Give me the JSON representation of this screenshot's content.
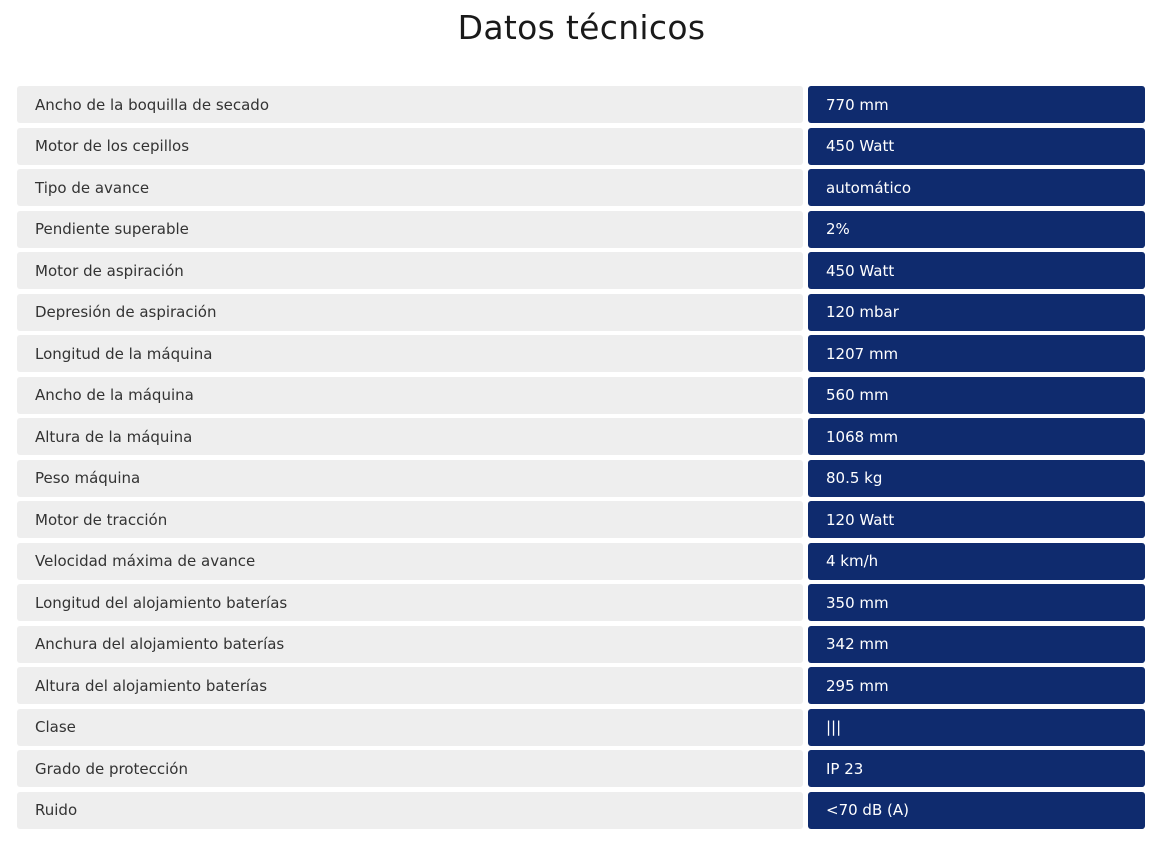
{
  "title": "Datos técnicos",
  "colors": {
    "label_bg": "#eeeeee",
    "value_bg": "#0f2b6e",
    "value_text": "#ffffff",
    "label_text": "#333333"
  },
  "specs": [
    {
      "label": "Ancho de la boquilla de secado",
      "value": "770 mm"
    },
    {
      "label": "Motor de los cepillos",
      "value": "450 Watt"
    },
    {
      "label": "Tipo de avance",
      "value": "automático"
    },
    {
      "label": "Pendiente superable",
      "value": "2%"
    },
    {
      "label": "Motor de aspiración",
      "value": "450 Watt"
    },
    {
      "label": "Depresión de aspiración",
      "value": "120 mbar"
    },
    {
      "label": "Longitud de la máquina",
      "value": "1207 mm"
    },
    {
      "label": "Ancho de la máquina",
      "value": "560 mm"
    },
    {
      "label": "Altura de la máquina",
      "value": "1068 mm"
    },
    {
      "label": "Peso máquina",
      "value": "80.5 kg"
    },
    {
      "label": "Motor de tracción",
      "value": "120 Watt"
    },
    {
      "label": "Velocidad máxima de avance",
      "value": "4 km/h"
    },
    {
      "label": "Longitud del alojamiento baterías",
      "value": "350 mm"
    },
    {
      "label": "Anchura del alojamiento baterías",
      "value": "342 mm"
    },
    {
      "label": "Altura del alojamiento baterías",
      "value": "295 mm"
    },
    {
      "label": "Clase",
      "value": "|||"
    },
    {
      "label": "Grado de protección",
      "value": "IP 23"
    },
    {
      "label": "Ruido",
      "value": "<70 dB (A)"
    }
  ]
}
